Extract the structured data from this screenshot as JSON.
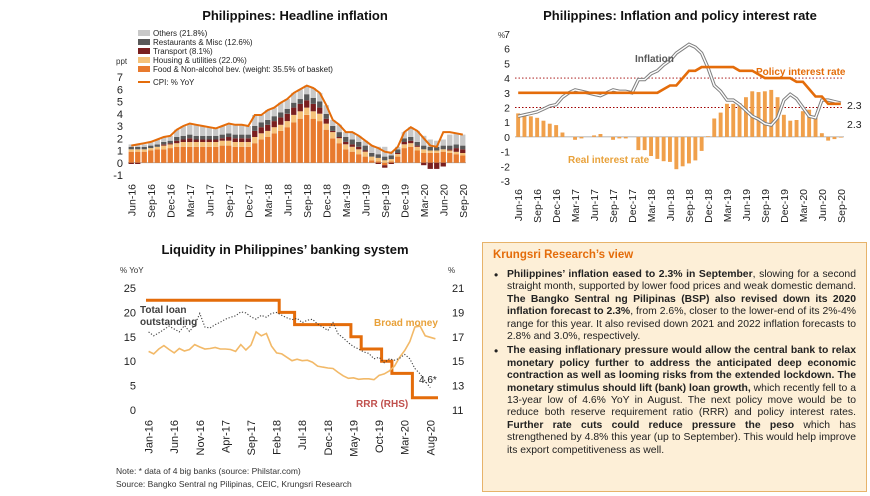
{
  "colors": {
    "orange": "#e46c0a",
    "light_orange": "#f0a04b",
    "food": "#e87a2e",
    "housing": "#f5c27a",
    "transport": "#7a1f1f",
    "restaurants": "#595959",
    "others": "#c8c8c8",
    "view_bg": "#fdefd7",
    "view_border": "#e7b36a",
    "grey_line": "#7f7f7f",
    "dark_dotted": "#404040"
  },
  "months": [
    "Jun-16",
    "Jul-16",
    "Aug-16",
    "Sep-16",
    "Oct-16",
    "Nov-16",
    "Dec-16",
    "Jan-17",
    "Feb-17",
    "Mar-17",
    "Apr-17",
    "May-17",
    "Jun-17",
    "Jul-17",
    "Aug-17",
    "Sep-17",
    "Oct-17",
    "Nov-17",
    "Dec-17",
    "Jan-18",
    "Feb-18",
    "Mar-18",
    "Apr-18",
    "May-18",
    "Jun-18",
    "Jul-18",
    "Aug-18",
    "Sep-18",
    "Oct-18",
    "Nov-18",
    "Dec-18",
    "Jan-19",
    "Feb-19",
    "Mar-19",
    "Apr-19",
    "May-19",
    "Jun-19",
    "Jul-19",
    "Aug-19",
    "Sep-19",
    "Oct-19",
    "Nov-19",
    "Dec-19",
    "Jan-20",
    "Feb-20",
    "Mar-20",
    "Apr-20",
    "May-20",
    "Jun-20",
    "Jul-20",
    "Aug-20",
    "Sep-20"
  ],
  "chart_data": [
    {
      "id": "headline-inflation",
      "type": "bar",
      "stacked": true,
      "title": "Philippines: Headline inflation",
      "ylabel": "ppt",
      "ylim": [
        -1,
        7
      ],
      "yticks": [
        "-1",
        "0",
        "1",
        "2",
        "3",
        "4",
        "5",
        "6",
        "7"
      ],
      "xticks": [
        "Jun-16",
        "Sep-16",
        "Dec-16",
        "Mar-17",
        "Jun-17",
        "Sep-17",
        "Dec-17",
        "Mar-18",
        "Jun-18",
        "Sep-18",
        "Dec-18",
        "Mar-19",
        "Jun-19",
        "Sep-19",
        "Dec-19",
        "Mar-20",
        "Jun-20",
        "Sep-20"
      ],
      "legend_position": "top-left",
      "series": [
        {
          "name": "Food & Non-alcohol bev. (weight: 35.5% of basket)",
          "kind": "bar",
          "values": [
            0.9,
            0.9,
            0.9,
            1.0,
            1.1,
            1.1,
            1.2,
            1.3,
            1.3,
            1.3,
            1.3,
            1.3,
            1.3,
            1.3,
            1.4,
            1.4,
            1.3,
            1.3,
            1.3,
            1.6,
            1.9,
            2.1,
            2.4,
            2.6,
            2.9,
            3.3,
            3.6,
            3.9,
            3.6,
            3.4,
            2.7,
            2.0,
            1.6,
            1.1,
            0.9,
            0.7,
            0.5,
            0.2,
            0.1,
            -0.2,
            0.1,
            0.5,
            1.2,
            1.3,
            1.0,
            0.8,
            0.8,
            0.8,
            0.9,
            0.8,
            0.7,
            0.6
          ]
        },
        {
          "name": "Housing & utilities (22.0%)",
          "kind": "bar",
          "values": [
            0.2,
            0.2,
            0.2,
            0.2,
            0.2,
            0.3,
            0.3,
            0.3,
            0.4,
            0.4,
            0.4,
            0.4,
            0.4,
            0.4,
            0.4,
            0.4,
            0.4,
            0.4,
            0.4,
            0.5,
            0.5,
            0.5,
            0.5,
            0.5,
            0.5,
            0.6,
            0.6,
            0.6,
            0.6,
            0.6,
            0.5,
            0.5,
            0.4,
            0.4,
            0.4,
            0.4,
            0.4,
            0.3,
            0.3,
            0.2,
            0.2,
            0.2,
            0.3,
            0.3,
            0.3,
            0.3,
            0.2,
            0.2,
            0.2,
            0.2,
            0.2,
            0.2
          ]
        },
        {
          "name": "Transport (8.1%)",
          "kind": "bar",
          "values": [
            -0.1,
            -0.1,
            0.0,
            0.0,
            0.0,
            0.1,
            0.1,
            0.2,
            0.2,
            0.3,
            0.2,
            0.2,
            0.2,
            0.2,
            0.2,
            0.3,
            0.3,
            0.3,
            0.3,
            0.5,
            0.5,
            0.5,
            0.5,
            0.6,
            0.6,
            0.6,
            0.6,
            0.6,
            0.6,
            0.5,
            0.4,
            0.1,
            0.1,
            0.2,
            0.2,
            0.2,
            0.1,
            0.0,
            -0.1,
            -0.2,
            -0.1,
            0.1,
            0.2,
            0.2,
            0.1,
            -0.2,
            -0.5,
            -0.5,
            -0.3,
            0.1,
            0.3,
            0.3
          ]
        },
        {
          "name": "Restaurants & Misc (12.6%)",
          "kind": "bar",
          "values": [
            0.2,
            0.2,
            0.2,
            0.2,
            0.2,
            0.2,
            0.2,
            0.3,
            0.3,
            0.3,
            0.3,
            0.3,
            0.3,
            0.3,
            0.3,
            0.3,
            0.3,
            0.3,
            0.3,
            0.4,
            0.4,
            0.4,
            0.4,
            0.4,
            0.4,
            0.4,
            0.4,
            0.5,
            0.5,
            0.5,
            0.4,
            0.4,
            0.4,
            0.4,
            0.4,
            0.4,
            0.4,
            0.3,
            0.3,
            0.3,
            0.3,
            0.3,
            0.3,
            0.3,
            0.3,
            0.3,
            0.3,
            0.3,
            0.3,
            0.3,
            0.3,
            0.3
          ]
        },
        {
          "name": "Others (21.8%)",
          "kind": "bar",
          "values": [
            0.2,
            0.2,
            0.2,
            0.3,
            0.4,
            0.4,
            0.4,
            0.6,
            0.8,
            0.9,
            0.9,
            0.8,
            0.7,
            0.6,
            0.7,
            0.8,
            0.8,
            0.8,
            0.7,
            0.9,
            0.6,
            0.8,
            0.7,
            0.8,
            0.8,
            0.8,
            0.8,
            0.7,
            0.8,
            0.7,
            0.7,
            0.5,
            0.6,
            0.4,
            0.6,
            0.5,
            0.4,
            0.6,
            0.6,
            0.8,
            0.3,
            0.2,
            0.5,
            0.8,
            0.9,
            0.8,
            0.6,
            0.5,
            0.5,
            0.9,
            0.9,
            0.9
          ]
        },
        {
          "name": "CPI: % YoY",
          "kind": "line",
          "values": [
            1.4,
            1.5,
            1.6,
            1.7,
            1.9,
            2.1,
            2.2,
            2.7,
            3.0,
            3.2,
            3.1,
            3.0,
            2.9,
            2.8,
            3.0,
            3.2,
            3.1,
            3.1,
            3.0,
            3.9,
            3.9,
            4.3,
            4.5,
            4.9,
            5.2,
            5.7,
            6.0,
            6.3,
            6.1,
            5.7,
            4.7,
            3.5,
            3.1,
            2.5,
            2.5,
            2.2,
            1.8,
            1.4,
            1.2,
            0.9,
            0.8,
            1.3,
            2.5,
            2.9,
            2.6,
            2.0,
            1.4,
            1.3,
            2.5,
            2.5,
            2.4,
            2.3
          ]
        }
      ]
    },
    {
      "id": "inflation-policy-rate",
      "type": "line",
      "title": "Philippines: Inflation and policy interest rate",
      "ylabel": "%",
      "ylim": [
        -3,
        7
      ],
      "yticks": [
        "-3",
        "-2",
        "-1",
        "0",
        "1",
        "2",
        "3",
        "4",
        "5",
        "6",
        "7"
      ],
      "xticks": [
        "Jun-16",
        "Sep-16",
        "Dec-16",
        "Mar-17",
        "Jun-17",
        "Sep-17",
        "Dec-17",
        "Mar-18",
        "Jun-18",
        "Sep-18",
        "Dec-18",
        "Mar-19",
        "Jun-19",
        "Sep-19",
        "Dec-19",
        "Mar-20",
        "Jun-20",
        "Sep-20"
      ],
      "reference_lines": [
        2,
        4
      ],
      "series": [
        {
          "name": "Inflation",
          "kind": "line",
          "values": [
            1.4,
            1.5,
            1.6,
            1.7,
            1.9,
            2.1,
            2.2,
            2.7,
            3.0,
            3.2,
            3.1,
            3.0,
            2.9,
            2.8,
            3.0,
            3.2,
            3.1,
            3.1,
            3.0,
            3.9,
            3.9,
            4.3,
            4.5,
            4.9,
            5.2,
            5.7,
            6.0,
            6.3,
            6.1,
            5.7,
            4.7,
            3.5,
            3.1,
            2.5,
            2.5,
            2.2,
            1.8,
            1.4,
            1.2,
            0.9,
            0.8,
            1.3,
            2.5,
            2.9,
            2.6,
            2.0,
            1.4,
            1.3,
            2.5,
            2.5,
            2.4,
            2.3
          ]
        },
        {
          "name": "Policy interest rate",
          "kind": "line",
          "values": [
            3.0,
            3.0,
            3.0,
            3.0,
            3.0,
            3.0,
            3.0,
            3.0,
            3.0,
            3.0,
            3.0,
            3.0,
            3.0,
            3.0,
            3.0,
            3.0,
            3.0,
            3.0,
            3.0,
            3.0,
            3.0,
            3.0,
            3.0,
            3.25,
            3.5,
            3.5,
            4.0,
            4.5,
            4.5,
            4.75,
            4.75,
            4.75,
            4.75,
            4.75,
            4.75,
            4.5,
            4.5,
            4.5,
            4.25,
            4.0,
            4.0,
            4.0,
            4.0,
            4.0,
            3.75,
            3.75,
            3.25,
            2.75,
            2.75,
            2.25,
            2.25,
            2.25
          ]
        },
        {
          "name": "Real interest rate",
          "kind": "bar",
          "values": [
            1.6,
            1.5,
            1.4,
            1.3,
            1.1,
            0.9,
            0.8,
            0.3,
            0.0,
            -0.2,
            -0.1,
            0.0,
            0.1,
            0.2,
            0.0,
            -0.2,
            -0.1,
            -0.1,
            0.0,
            -0.9,
            -0.9,
            -1.3,
            -1.5,
            -1.65,
            -1.7,
            -2.2,
            -2.0,
            -1.8,
            -1.6,
            -0.95,
            0.05,
            1.25,
            1.65,
            2.25,
            2.25,
            2.3,
            2.7,
            3.1,
            3.05,
            3.1,
            3.2,
            2.7,
            1.5,
            1.1,
            1.15,
            1.75,
            1.85,
            1.45,
            0.25,
            -0.25,
            -0.15,
            -0.05
          ]
        }
      ],
      "labels": {
        "inflation": "Inflation",
        "policy": "Policy interest rate",
        "real": "Real interest rate",
        "end_inflation": "2.3",
        "end_policy": "2.3"
      }
    },
    {
      "id": "liquidity",
      "type": "line",
      "title": "Liquidity in Philippines’ banking system",
      "ylabel_left": "% YoY",
      "ylabel_right": "%",
      "ylim_left": [
        0,
        25
      ],
      "ylim_right": [
        11,
        21
      ],
      "yticks_left": [
        "0",
        "5",
        "10",
        "15",
        "20",
        "25"
      ],
      "yticks_right": [
        "11",
        "13",
        "15",
        "17",
        "19",
        "21"
      ],
      "xticks": [
        "Jan-16",
        "Jun-16",
        "Nov-16",
        "Apr-17",
        "Sep-17",
        "Feb-18",
        "Jul-18",
        "Dec-18",
        "May-19",
        "Oct-19",
        "Mar-20",
        "Aug-20"
      ],
      "x_months": [
        "Jan-16",
        "Feb-16",
        "Mar-16",
        "Apr-16",
        "May-16",
        "Jun-16",
        "Jul-16",
        "Aug-16",
        "Sep-16",
        "Oct-16",
        "Nov-16",
        "Dec-16",
        "Jan-17",
        "Feb-17",
        "Mar-17",
        "Apr-17",
        "May-17",
        "Jun-17",
        "Jul-17",
        "Aug-17",
        "Sep-17",
        "Oct-17",
        "Nov-17",
        "Dec-17",
        "Jan-18",
        "Feb-18",
        "Mar-18",
        "Apr-18",
        "May-18",
        "Jun-18",
        "Jul-18",
        "Aug-18",
        "Sep-18",
        "Oct-18",
        "Nov-18",
        "Dec-18",
        "Jan-19",
        "Feb-19",
        "Mar-19",
        "Apr-19",
        "May-19",
        "Jun-19",
        "Jul-19",
        "Aug-19",
        "Sep-19",
        "Oct-19",
        "Nov-19",
        "Dec-19",
        "Jan-20",
        "Feb-20",
        "Mar-20",
        "Apr-20",
        "May-20",
        "Jun-20",
        "Jul-20",
        "Aug-20",
        "Sep-20"
      ],
      "series": [
        {
          "name": "Total loan outstanding",
          "axis": "left",
          "values": [
            16.0,
            15.2,
            15.8,
            16.5,
            17.2,
            16.6,
            16.0,
            17.3,
            16.1,
            17.4,
            19.8,
            17.0,
            16.8,
            17.5,
            18.0,
            18.6,
            19.0,
            19.3,
            20.1,
            19.9,
            19.1,
            18.6,
            19.4,
            19.0,
            19.8,
            20.0,
            19.4,
            18.9,
            18.5,
            18.8,
            17.9,
            18.4,
            18.6,
            17.6,
            17.0,
            16.3,
            17.9,
            15.6,
            14.8,
            13.8,
            13.0,
            12.5,
            11.9,
            11.6,
            10.5,
            10.8,
            9.7,
            10.5,
            10.2,
            10.6,
            11.4,
            10.5,
            8.5,
            7.4,
            5.9,
            4.6
          ]
        },
        {
          "name": "Broad money",
          "axis": "left",
          "values": [
            12.0,
            11.5,
            12.5,
            13.2,
            12.4,
            11.7,
            12.6,
            12.1,
            12.4,
            13.4,
            12.9,
            12.5,
            12.6,
            12.8,
            12.5,
            12.5,
            12.4,
            12.0,
            13.4,
            12.3,
            13.3,
            16.0,
            15.2,
            15.7,
            13.1,
            11.7,
            11.5,
            10.8,
            10.1,
            10.4,
            10.1,
            10.2,
            9.8,
            9.0,
            8.8,
            8.6,
            8.5,
            7.7,
            7.0,
            6.5,
            6.6,
            6.3,
            6.4,
            6.4,
            6.2,
            7.1,
            7.4,
            8.0,
            9.0,
            10.8,
            12.2,
            14.0,
            17.0,
            17.2,
            15.2,
            14.9,
            14.6
          ]
        },
        {
          "name": "RRR (RHS)",
          "axis": "right",
          "values": [
            20.0,
            20.0,
            20.0,
            20.0,
            20.0,
            20.0,
            20.0,
            20.0,
            20.0,
            20.0,
            20.0,
            20.0,
            20.0,
            20.0,
            20.0,
            20.0,
            20.0,
            20.0,
            20.0,
            20.0,
            20.0,
            20.0,
            20.0,
            20.0,
            20.0,
            20.0,
            19.0,
            19.0,
            19.0,
            18.0,
            18.0,
            18.0,
            18.0,
            18.0,
            18.0,
            18.0,
            18.0,
            18.0,
            18.0,
            18.0,
            17.0,
            17.0,
            16.0,
            16.0,
            16.0,
            16.0,
            15.0,
            15.0,
            14.0,
            14.0,
            14.0,
            14.0,
            12.0,
            12.0,
            12.0,
            12.0,
            12.0
          ]
        }
      ],
      "labels": {
        "loan": "Total loan outstanding",
        "money": "Broad money",
        "rrr": "RRR (RHS)",
        "end_loan": "4.6*"
      }
    }
  ],
  "notes": {
    "note1": "Note: * data of 4 big banks (source: Philstar.com)",
    "note2": "Source: Bangko Sentral ng Pilipinas, CEIC, Krungsri Research"
  },
  "view": {
    "title": "Krungsri Research’s view",
    "p1": [
      {
        "b": true,
        "t": "Philippines’ inflation eased to 2.3% in September"
      },
      {
        "b": false,
        "t": ", slowing for a second straight month, supported by lower food prices and weak domestic demand. "
      },
      {
        "b": true,
        "t": "The Bangko Sentral ng Pilipinas (BSP) also revised down its 2020 inflation forecast to 2.3%"
      },
      {
        "b": false,
        "t": ", from 2.6%, closer to the lower-end of its 2%-4% range for this year. It also revised down 2021 and 2022 inflation forecasts to 2.8% and 3.0%, respectively."
      }
    ],
    "p2": [
      {
        "b": true,
        "t": "The easing inflationary pressure would allow the central bank to relax monetary policy further to address the anticipated deep economic contraction as well as looming risks from the extended lockdown. The monetary stimulus should lift (bank) loan growth,"
      },
      {
        "b": false,
        "t": " which recently fell to a 13-year low of 4.6% YoY in August. The next policy move would be to reduce both reserve requirement ratio (RRR) and policy interest rates. "
      },
      {
        "b": true,
        "t": "Further rate cuts could reduce pressure the peso"
      },
      {
        "b": false,
        "t": " which has strengthened by 4.8% this year (up to September). This would help improve its export competitiveness as well."
      }
    ]
  }
}
